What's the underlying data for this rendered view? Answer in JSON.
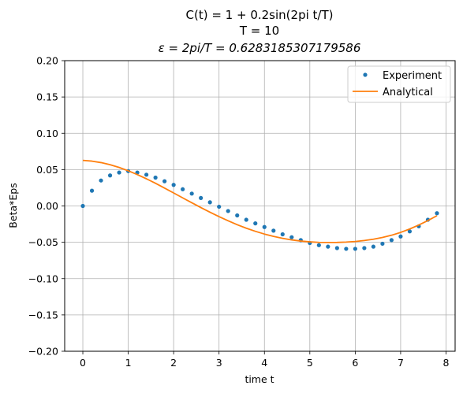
{
  "chart_data": {
    "type": "line",
    "title_lines": [
      "C(t) = 1 + 0.2sin(2pi t/T)",
      "T = 10",
      "ε = 2pi/T = 0.6283185307179586"
    ],
    "xlabel": "time t",
    "ylabel": "Beta*Eps",
    "xlim": [
      -0.4,
      8.2
    ],
    "ylim": [
      -0.2,
      0.2
    ],
    "xticks": [
      0,
      1,
      2,
      3,
      4,
      5,
      6,
      7,
      8
    ],
    "xtick_labels": [
      "0",
      "1",
      "2",
      "3",
      "4",
      "5",
      "6",
      "7",
      "8"
    ],
    "yticks": [
      -0.2,
      -0.15,
      -0.1,
      -0.05,
      0.0,
      0.05,
      0.1,
      0.15,
      0.2
    ],
    "ytick_labels": [
      "−0.20",
      "−0.15",
      "−0.10",
      "−0.05",
      "0.00",
      "0.05",
      "0.10",
      "0.15",
      "0.20"
    ],
    "grid": true,
    "legend_position": "top-right",
    "series": [
      {
        "name": "Experiment",
        "style": "points",
        "color": "#1f77b4",
        "x": [
          0.0,
          0.2,
          0.4,
          0.6,
          0.8,
          1.0,
          1.2,
          1.4,
          1.6,
          1.8,
          2.0,
          2.2,
          2.4,
          2.6,
          2.8,
          3.0,
          3.2,
          3.4,
          3.6,
          3.8,
          4.0,
          4.2,
          4.4,
          4.6,
          4.8,
          5.0,
          5.2,
          5.4,
          5.6,
          5.8,
          6.0,
          6.2,
          6.4,
          6.6,
          6.8,
          7.0,
          7.2,
          7.4,
          7.6,
          7.8
        ],
        "y": [
          0.0,
          0.021,
          0.035,
          0.042,
          0.046,
          0.048,
          0.046,
          0.043,
          0.039,
          0.034,
          0.029,
          0.023,
          0.017,
          0.011,
          0.005,
          -0.001,
          -0.007,
          -0.013,
          -0.019,
          -0.024,
          -0.029,
          -0.034,
          -0.039,
          -0.043,
          -0.047,
          -0.051,
          -0.054,
          -0.056,
          -0.058,
          -0.059,
          -0.059,
          -0.058,
          -0.056,
          -0.052,
          -0.047,
          -0.042,
          -0.035,
          -0.028,
          -0.019,
          -0.01
        ]
      },
      {
        "name": "Analytical",
        "style": "line",
        "color": "#ff7f0e",
        "x": [
          0.0,
          0.2,
          0.4,
          0.6,
          0.8,
          1.0,
          1.2,
          1.4,
          1.6,
          1.8,
          2.0,
          2.2,
          2.4,
          2.6,
          2.8,
          3.0,
          3.2,
          3.4,
          3.6,
          3.8,
          4.0,
          4.2,
          4.4,
          4.6,
          4.8,
          5.0,
          5.2,
          5.4,
          5.6,
          5.8,
          6.0,
          6.2,
          6.4,
          6.6,
          6.8,
          7.0,
          7.2,
          7.4,
          7.6,
          7.8
        ],
        "y": [
          0.0627,
          0.0617,
          0.0597,
          0.0568,
          0.053,
          0.0484,
          0.0432,
          0.0374,
          0.0312,
          0.0246,
          0.0179,
          0.0111,
          0.0044,
          -0.0022,
          -0.0086,
          -0.0147,
          -0.0204,
          -0.0258,
          -0.0306,
          -0.0349,
          -0.0387,
          -0.0419,
          -0.0446,
          -0.0467,
          -0.0483,
          -0.0494,
          -0.0501,
          -0.0503,
          -0.0502,
          -0.0497,
          -0.0489,
          -0.0476,
          -0.0458,
          -0.0434,
          -0.0403,
          -0.0364,
          -0.0317,
          -0.0262,
          -0.0201,
          -0.0134
        ]
      }
    ]
  }
}
